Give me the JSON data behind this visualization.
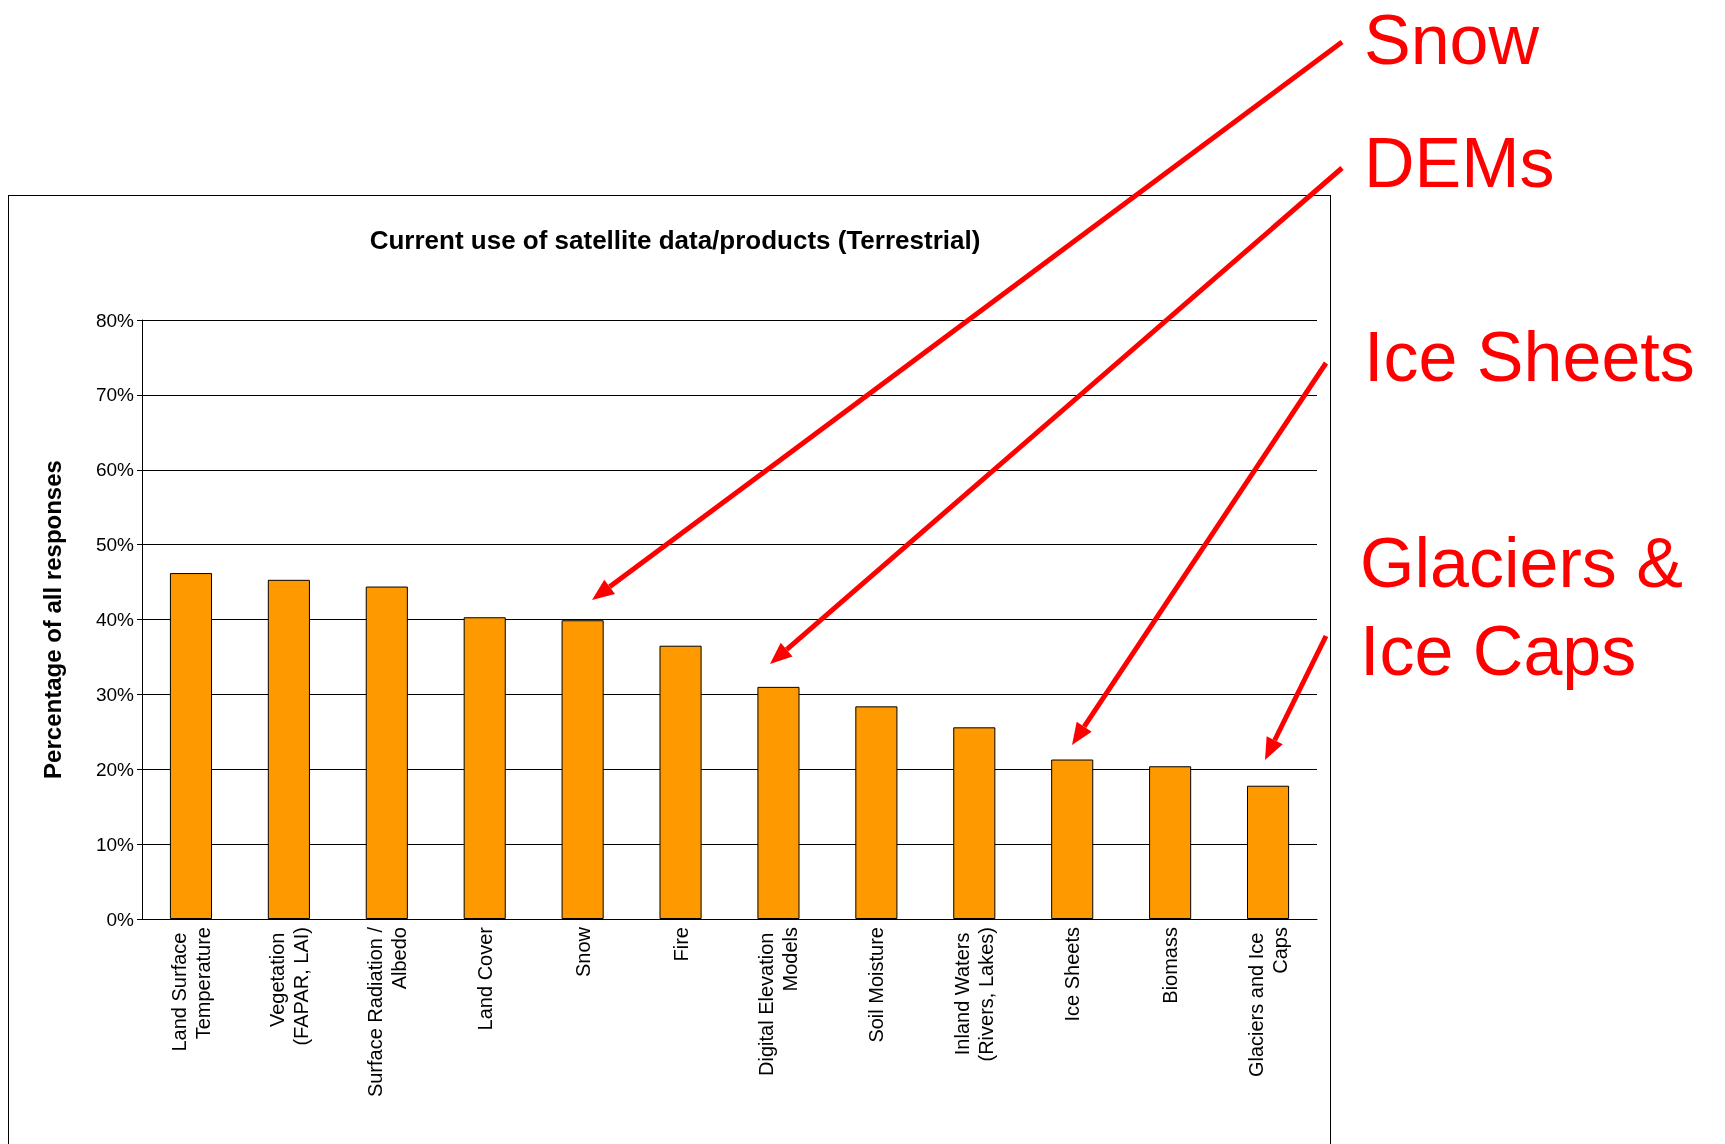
{
  "chart_data": {
    "type": "bar",
    "title": "Current use of satellite data/products (Terrestrial)",
    "ylabel": "Percentage of all responses",
    "categories": [
      "Land Surface Temperature",
      "Vegetation (FAPAR, LAI)",
      "Surface Radiation / Albedo",
      "Land Cover",
      "Snow",
      "Fire",
      "Digital Elevation Models",
      "Soil Moisture",
      "Inland Waters (Rivers, Lakes)",
      "Ice Sheets",
      "Biomass",
      "Glaciers and Ice Caps"
    ],
    "values": [
      46.2,
      45.3,
      44.4,
      40.3,
      39.9,
      36.5,
      31.0,
      28.4,
      25.6,
      21.3,
      20.4,
      17.8
    ],
    "color": "#ff9900",
    "ylim": [
      0,
      80
    ],
    "yticks": [
      {
        "value": 0,
        "label": "0%"
      },
      {
        "value": 10,
        "label": "10%"
      },
      {
        "value": 20,
        "label": "20%"
      },
      {
        "value": 30,
        "label": "30%"
      },
      {
        "value": 40,
        "label": "40%"
      },
      {
        "value": 50,
        "label": "50%"
      },
      {
        "value": 60,
        "label": "60%"
      },
      {
        "value": 70,
        "label": "70%"
      },
      {
        "value": 80,
        "label": "80%"
      }
    ],
    "grid": "y",
    "annotations": [
      "Snow",
      "DEMs",
      "Ice Sheets",
      "Glaciers & Ice Caps"
    ]
  }
}
